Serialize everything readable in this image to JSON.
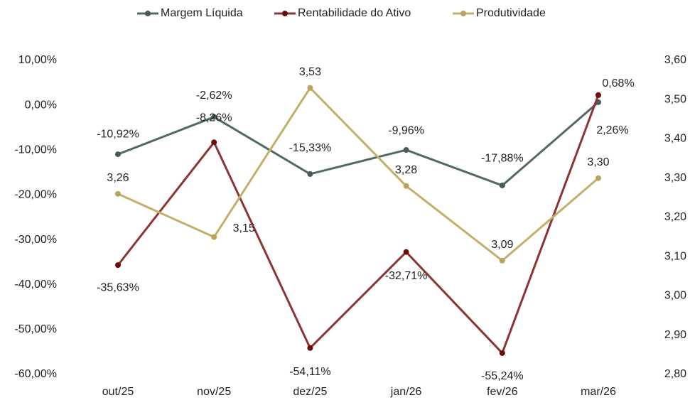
{
  "chart_data": {
    "type": "line",
    "categories": [
      "out/25",
      "nov/25",
      "dez/25",
      "jan/26",
      "fev/26",
      "mar/26"
    ],
    "series": [
      {
        "name": "Margem Líquida",
        "color": "#526868",
        "values": [
          -10.92,
          -2.62,
          -15.33,
          -9.96,
          -17.88,
          0.68
        ],
        "value_labels": [
          "-10,92%",
          "-2,62%",
          "-15,33%",
          "-9,96%",
          "-17,88%",
          "0,68%"
        ]
      },
      {
        "name": "Rentabilidade do Ativo",
        "color": "#8c3434",
        "values": [
          -35.63,
          -8.26,
          -54.11,
          -32.71,
          -55.24,
          2.26
        ],
        "value_labels": [
          "-35,63%",
          "-8,26%",
          "-54,11%",
          "-32,71%",
          "-55,24%",
          "2,26%"
        ]
      },
      {
        "name": "Produtividade",
        "color": "#c0b06a",
        "axis": "y2",
        "values": [
          3.26,
          3.15,
          3.53,
          3.28,
          3.09,
          3.3
        ],
        "value_labels": [
          "3,26",
          "3,15",
          "3,53",
          "3,28",
          "3,09",
          "3,30"
        ]
      }
    ],
    "ylim": [
      -60,
      10
    ],
    "yticks": [
      {
        "value": -60,
        "label": "-60,00%"
      },
      {
        "value": -50,
        "label": "-50,00%"
      },
      {
        "value": -40,
        "label": "-40,00%"
      },
      {
        "value": -30,
        "label": "-30,00%"
      },
      {
        "value": -20,
        "label": "-20,00%"
      },
      {
        "value": -10,
        "label": "-10,00%"
      },
      {
        "value": 0,
        "label": "0,00%"
      },
      {
        "value": 10,
        "label": "10,00%"
      }
    ],
    "y2lim": [
      2.8,
      3.6
    ],
    "y2ticks": [
      {
        "value": 2.8,
        "label": "2,80"
      },
      {
        "value": 2.9,
        "label": "2,90"
      },
      {
        "value": 3.0,
        "label": "3,00"
      },
      {
        "value": 3.1,
        "label": "3,10"
      },
      {
        "value": 3.2,
        "label": "3,20"
      },
      {
        "value": 3.3,
        "label": "3,30"
      },
      {
        "value": 3.4,
        "label": "3,40"
      },
      {
        "value": 3.5,
        "label": "3,50"
      },
      {
        "value": 3.6,
        "label": "3,60"
      }
    ],
    "legend": "top"
  }
}
